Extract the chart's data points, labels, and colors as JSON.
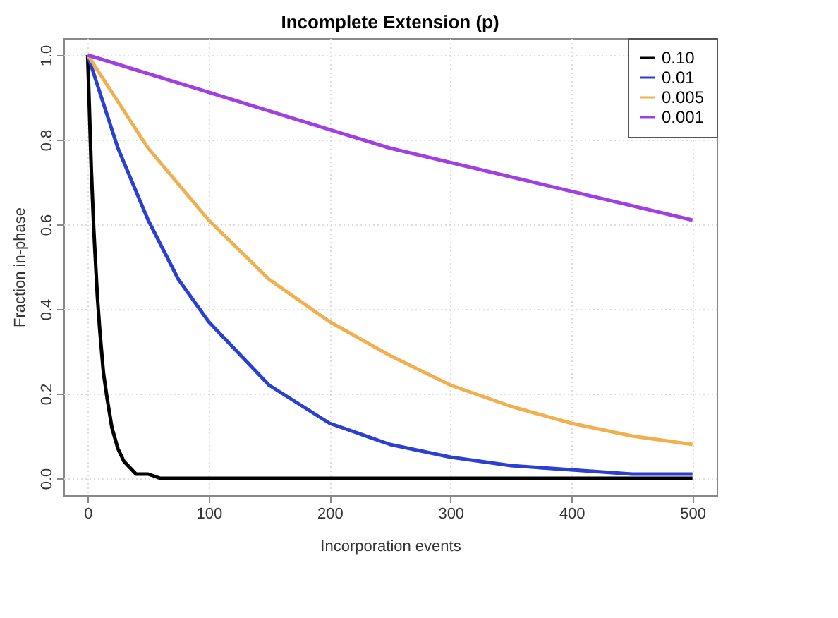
{
  "chart_data": {
    "type": "line",
    "title": "Incomplete Extension (p)",
    "xlabel": "Incorporation events",
    "ylabel": "Fraction in-phase",
    "legend_title": null,
    "xlim": [
      -20,
      520
    ],
    "ylim": [
      -0.04,
      1.04
    ],
    "xticks": [
      0,
      100,
      200,
      300,
      400,
      500
    ],
    "yticks": [
      {
        "value": 0,
        "label": "0.0"
      },
      0.2,
      0.4,
      0.6,
      0.8,
      {
        "value": 1,
        "label": "1.0"
      }
    ],
    "grid": true,
    "legend": "top right",
    "marker": "none",
    "line_style": "solid",
    "series": [
      {
        "name": "0.10",
        "color": "#000000",
        "x": [
          0,
          3,
          5,
          8,
          10,
          13,
          16,
          20,
          25,
          30,
          40,
          50,
          60,
          500
        ],
        "values": [
          1,
          0.73,
          0.59,
          0.43,
          0.35,
          0.25,
          0.19,
          0.12,
          0.07,
          0.04,
          0.01,
          0.01,
          0,
          0
        ]
      },
      {
        "name": "0.01",
        "color": "#2b3fd0",
        "x": [
          0,
          25,
          50,
          75,
          100,
          150,
          200,
          250,
          300,
          350,
          400,
          450,
          500
        ],
        "values": [
          1,
          0.78,
          0.61,
          0.47,
          0.37,
          0.22,
          0.13,
          0.08,
          0.05,
          0.03,
          0.02,
          0.01,
          0.01
        ]
      },
      {
        "name": "0.005",
        "color": "#f0b050",
        "x": [
          0,
          50,
          100,
          150,
          200,
          250,
          300,
          350,
          400,
          450,
          500
        ],
        "values": [
          1,
          0.78,
          0.61,
          0.47,
          0.37,
          0.29,
          0.22,
          0.17,
          0.13,
          0.1,
          0.08
        ]
      },
      {
        "name": "0.001",
        "color": "#a040e0",
        "x": [
          0,
          250,
          500
        ],
        "values": [
          1,
          0.78,
          0.61
        ]
      }
    ]
  }
}
